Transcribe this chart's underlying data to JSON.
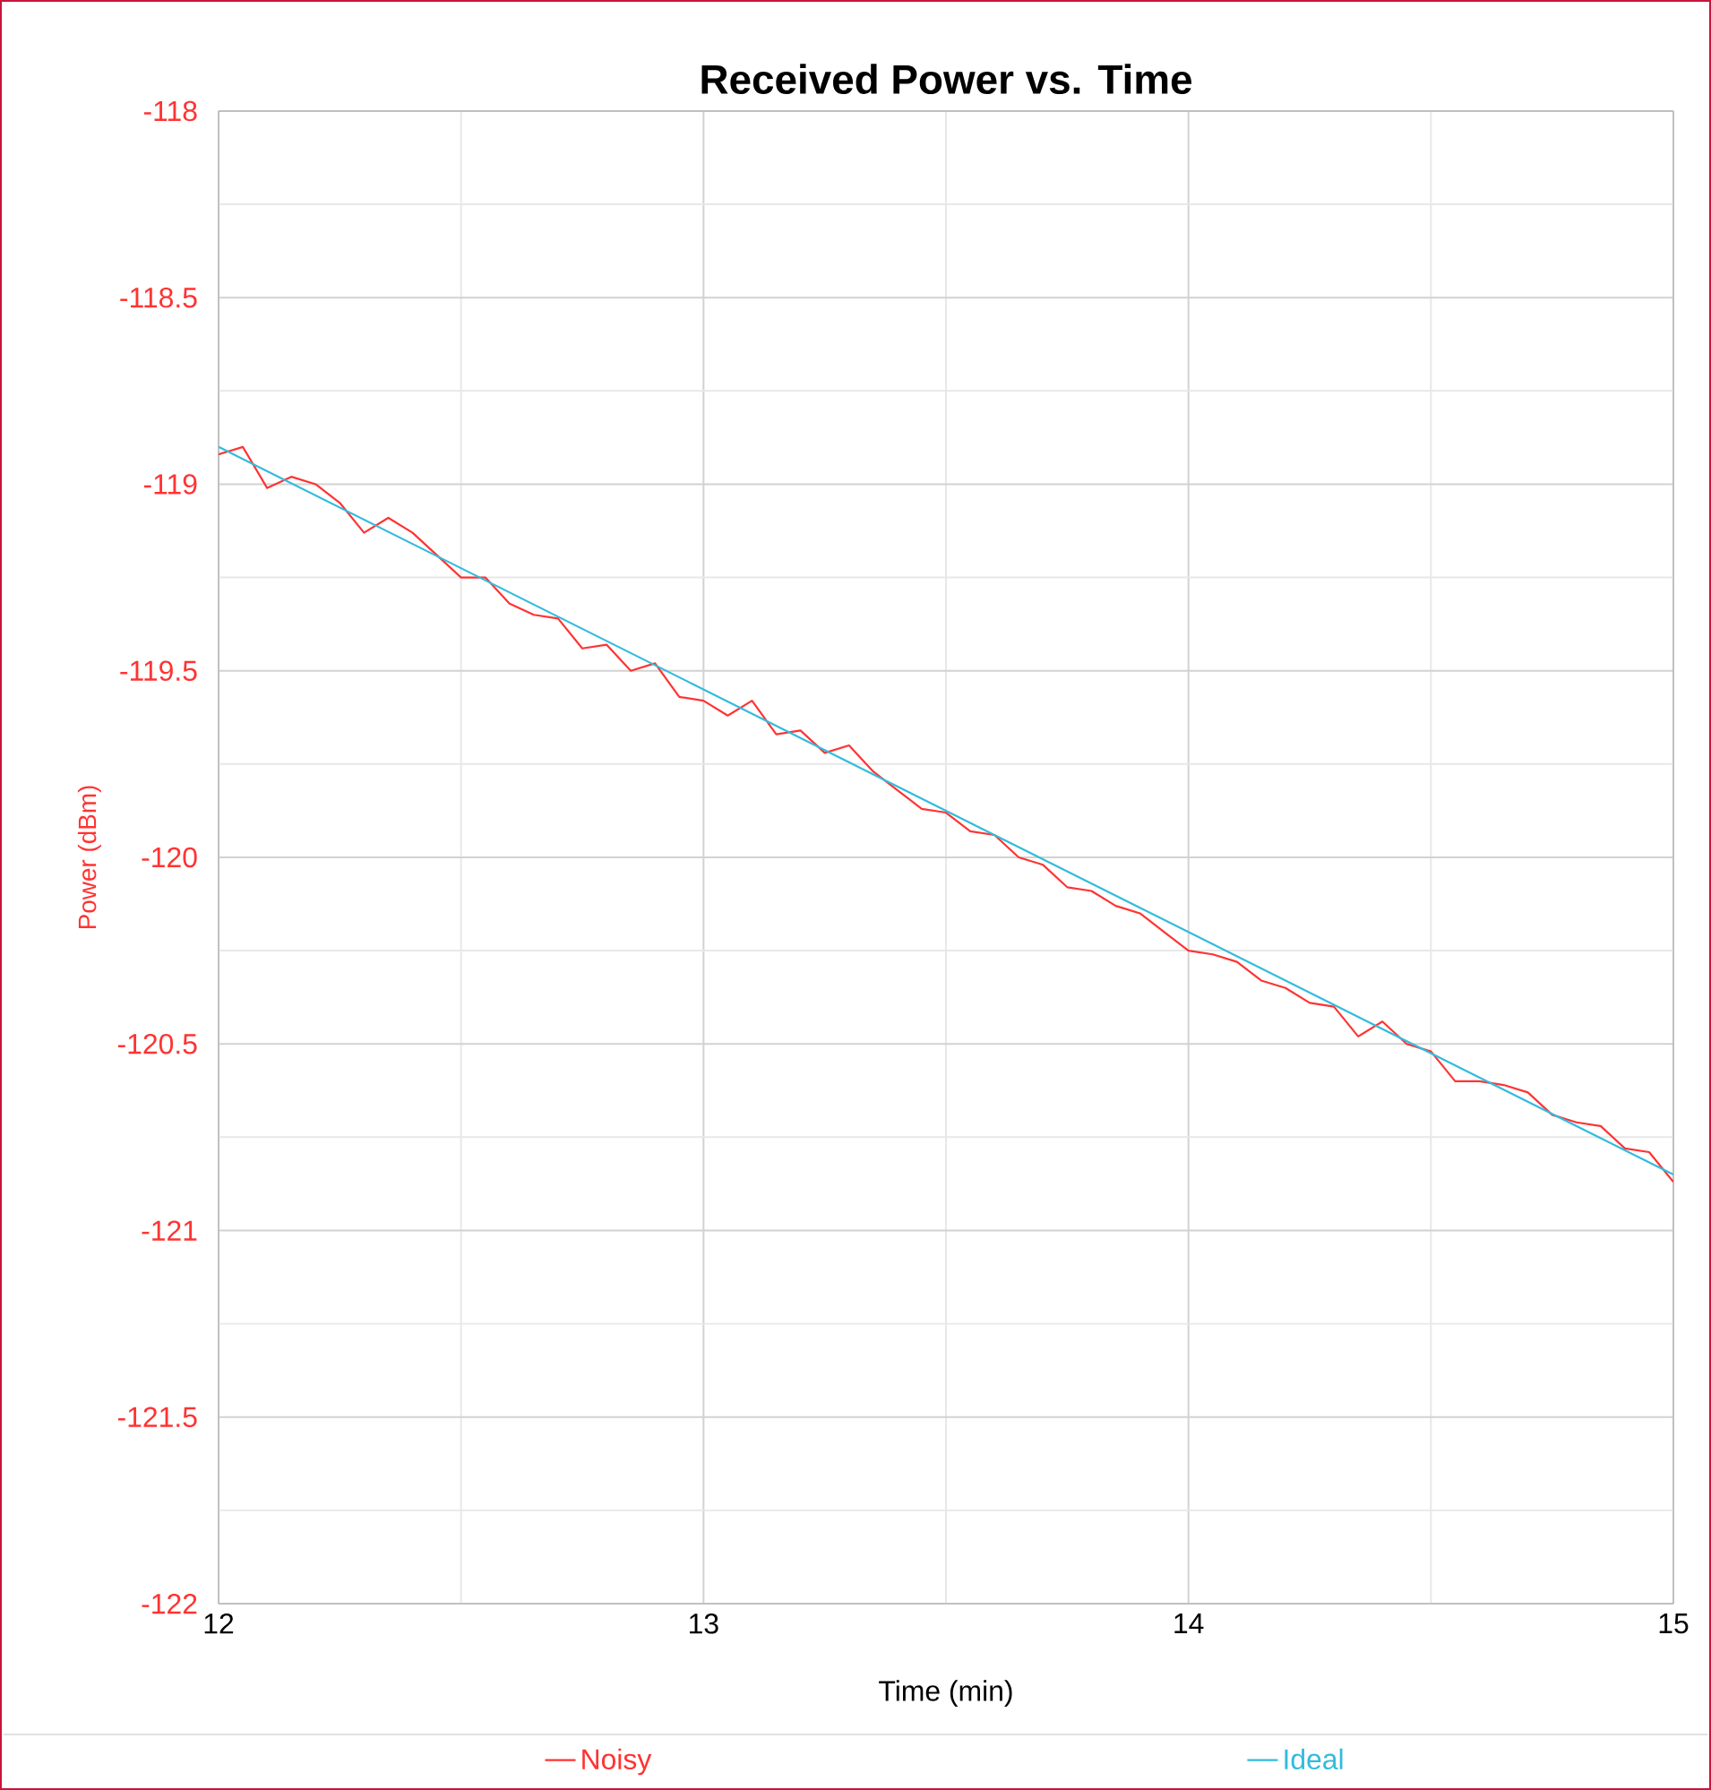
{
  "chart_data": {
    "type": "line",
    "title": "Received Power vs. Time",
    "xlabel": "Time (min)",
    "ylabel": "Power (dBm)",
    "xlim": [
      12,
      15
    ],
    "xticks": [
      12,
      13,
      14,
      15
    ],
    "ylim": [
      -122,
      -118
    ],
    "yticks": [
      -122,
      -121.5,
      -121,
      -120.5,
      -120,
      -119.5,
      -119,
      -118.5,
      -118
    ],
    "grid": true,
    "legend": "bottom",
    "marker": "none",
    "line_style": "solid",
    "series": [
      {
        "name": "Noisy",
        "color": "#ff3333",
        "x": [
          12.0,
          12.05,
          12.1,
          12.15,
          12.2,
          12.25,
          12.3,
          12.35,
          12.4,
          12.45,
          12.5,
          12.55,
          12.6,
          12.65,
          12.7,
          12.75,
          12.8,
          12.85,
          12.9,
          12.95,
          13.0,
          13.05,
          13.1,
          13.15,
          13.2,
          13.25,
          13.3,
          13.35,
          13.4,
          13.45,
          13.5,
          13.55,
          13.6,
          13.65,
          13.7,
          13.75,
          13.8,
          13.85,
          13.9,
          13.95,
          14.0,
          14.05,
          14.1,
          14.15,
          14.2,
          14.25,
          14.3,
          14.35,
          14.4,
          14.45,
          14.5,
          14.55,
          14.6,
          14.65,
          14.7,
          14.75,
          14.8,
          14.85,
          14.9,
          14.95,
          15.0
        ],
        "values": [
          -118.92,
          -118.9,
          -119.01,
          -118.98,
          -119.0,
          -119.05,
          -119.13,
          -119.09,
          -119.13,
          -119.19,
          -119.25,
          -119.25,
          -119.32,
          -119.35,
          -119.36,
          -119.44,
          -119.43,
          -119.5,
          -119.48,
          -119.57,
          -119.58,
          -119.62,
          -119.58,
          -119.67,
          -119.66,
          -119.72,
          -119.7,
          -119.77,
          -119.82,
          -119.87,
          -119.88,
          -119.93,
          -119.94,
          -120.0,
          -120.02,
          -120.08,
          -120.09,
          -120.13,
          -120.15,
          -120.2,
          -120.25,
          -120.26,
          -120.28,
          -120.33,
          -120.35,
          -120.39,
          -120.4,
          -120.48,
          -120.44,
          -120.5,
          -120.52,
          -120.6,
          -120.6,
          -120.61,
          -120.63,
          -120.69,
          -120.71,
          -120.72,
          -120.78,
          -120.79,
          -120.87
        ]
      },
      {
        "name": "Ideal",
        "color": "#33bbdd",
        "x": [
          12,
          15
        ],
        "values": [
          -118.9,
          -120.85
        ]
      }
    ]
  }
}
